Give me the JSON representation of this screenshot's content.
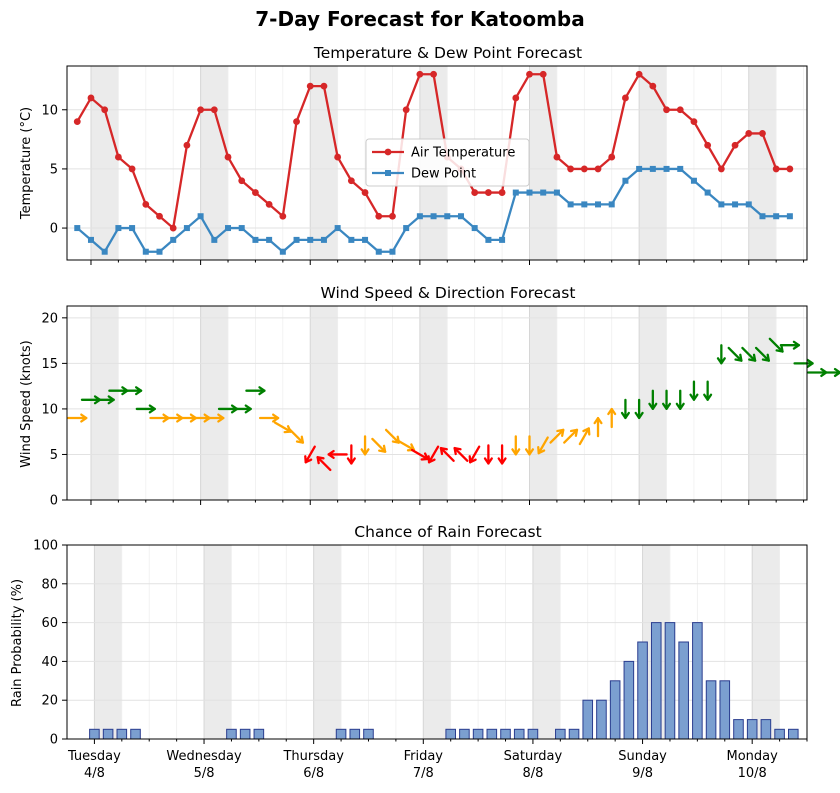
{
  "figure": {
    "title": "7-Day Forecast for Katoomba",
    "x_tick_labels": [
      {
        "day": "Tuesday",
        "date": "4/8"
      },
      {
        "day": "Wednesday",
        "date": "5/8"
      },
      {
        "day": "Thursday",
        "date": "6/8"
      },
      {
        "day": "Friday",
        "date": "7/8"
      },
      {
        "day": "Saturday",
        "date": "8/8"
      },
      {
        "day": "Sunday",
        "date": "9/8"
      },
      {
        "day": "Monday",
        "date": "10/8"
      }
    ],
    "x_range_hours": [
      -1.75,
      52.25
    ],
    "points_every_hours": 1,
    "shaded_bands_hours": [
      [
        0,
        2
      ],
      [
        8,
        10
      ],
      [
        16,
        18
      ],
      [
        24,
        26
      ],
      [
        32,
        34
      ],
      [
        40,
        42
      ],
      [
        48,
        50
      ]
    ]
  },
  "colors": {
    "air_temperature": "#d62728",
    "dew_point": "#3a87c1",
    "wind_low": "#ffa500",
    "wind_calm": "#ff0000",
    "wind_high": "#008000",
    "rain_fill": "#7b9fd0",
    "rain_edge": "#2a3d8f",
    "band": "#ebebeb"
  },
  "chart_data": [
    {
      "type": "line",
      "title": "Temperature & Dew Point Forecast",
      "ylabel": "Temperature (°C)",
      "ylim": [
        -2.7,
        13.7
      ],
      "yticks": [
        0,
        5,
        10
      ],
      "grid": true,
      "legend": "center",
      "x_start_hour": -1,
      "series": [
        {
          "name": "Air Temperature",
          "marker": "circle",
          "values": [
            9,
            11,
            10,
            6,
            5,
            2,
            1,
            0,
            7,
            10,
            10,
            6,
            4,
            3,
            2,
            1,
            9,
            12,
            12,
            6,
            4,
            3,
            1,
            1,
            10,
            13,
            13,
            6,
            5,
            3,
            3,
            3,
            11,
            13,
            13,
            6,
            5,
            5,
            5,
            6,
            11,
            13,
            12,
            10,
            10,
            9,
            7,
            5,
            7,
            8,
            8,
            5,
            5
          ]
        },
        {
          "name": "Dew Point",
          "marker": "square",
          "values": [
            0,
            -1,
            -2,
            0,
            0,
            -2,
            -2,
            -1,
            0,
            1,
            -1,
            0,
            0,
            -1,
            -1,
            -2,
            -1,
            -1,
            -1,
            0,
            -1,
            -1,
            -2,
            -2,
            0,
            1,
            1,
            1,
            1,
            0,
            -1,
            -1,
            3,
            3,
            3,
            3,
            2,
            2,
            2,
            2,
            4,
            5,
            5,
            5,
            5,
            4,
            3,
            2,
            2,
            2,
            1,
            1,
            1
          ]
        }
      ]
    },
    {
      "type": "scatter",
      "title": "Wind Speed & Direction Forecast",
      "ylabel": "Wind Speed (knots)",
      "ylim": [
        0,
        21.3
      ],
      "yticks": [
        0,
        5,
        10,
        15,
        20
      ],
      "grid": true,
      "x_start_hour": -1,
      "arrow_direction_degrees": "direction the wind blows toward, 0 = east, 90 = north",
      "speed": [
        9,
        11,
        11,
        12,
        12,
        10,
        9,
        9,
        9,
        9,
        9,
        10,
        10,
        12,
        9,
        8,
        7,
        5,
        4,
        5,
        5,
        6,
        6,
        7,
        6,
        5,
        5,
        5,
        5,
        5,
        5,
        5,
        6,
        6,
        6,
        7,
        7,
        7,
        8,
        9,
        10,
        10,
        11,
        11,
        11,
        12,
        12,
        16,
        16,
        16,
        16,
        17,
        17,
        15,
        14,
        14
      ],
      "direction": [
        0,
        0,
        0,
        0,
        0,
        0,
        0,
        0,
        0,
        0,
        0,
        0,
        0,
        0,
        0,
        -30,
        -45,
        -120,
        135,
        180,
        -90,
        -90,
        -45,
        -45,
        -30,
        -30,
        -120,
        135,
        135,
        -120,
        -90,
        -90,
        -90,
        -90,
        -120,
        45,
        45,
        60,
        90,
        90,
        -90,
        -90,
        -90,
        -90,
        -90,
        -90,
        -90,
        -90,
        -45,
        -45,
        -45,
        -45,
        0,
        0,
        0,
        0
      ]
    },
    {
      "type": "bar",
      "title": "Chance of Rain Forecast",
      "ylabel": "Rain Probability (%)",
      "ylim": [
        0,
        100
      ],
      "yticks": [
        0,
        20,
        40,
        60,
        80,
        100
      ],
      "grid": true,
      "x_start_hour": 0,
      "values": [
        5,
        5,
        5,
        5,
        0,
        0,
        0,
        0,
        0,
        0,
        5,
        5,
        5,
        0,
        0,
        0,
        0,
        0,
        5,
        5,
        5,
        0,
        0,
        0,
        0,
        0,
        5,
        5,
        5,
        5,
        5,
        5,
        5,
        0,
        5,
        5,
        20,
        20,
        30,
        40,
        50,
        60,
        60,
        50,
        60,
        30,
        30,
        10,
        10,
        10,
        5,
        5
      ]
    }
  ]
}
